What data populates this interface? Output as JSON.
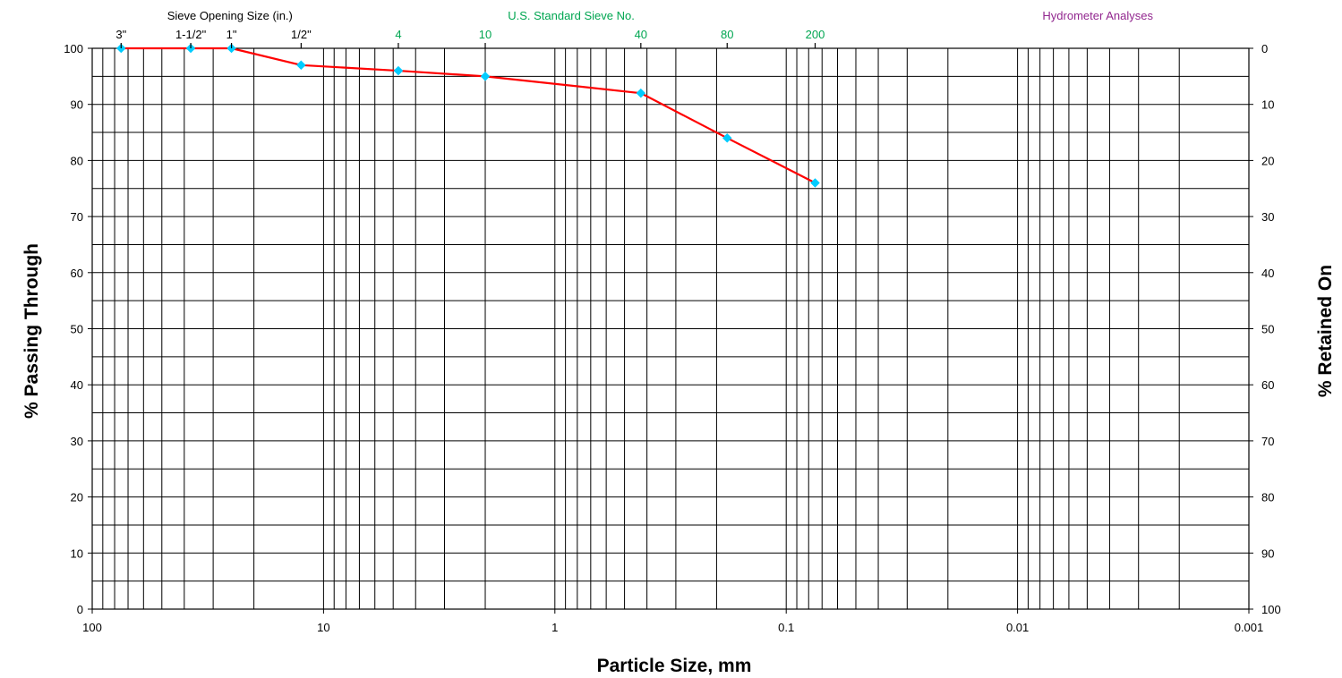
{
  "chart_data": {
    "type": "line",
    "title": "",
    "xlabel": "Particle Size, mm",
    "ylabel": "% Passing Through",
    "y2label": "% Retained On",
    "x_scale": "log",
    "x_reversed": true,
    "xlim": [
      100,
      0.001
    ],
    "ylim": [
      0,
      100
    ],
    "y2lim": [
      100,
      0
    ],
    "grid": true,
    "x_ticks": [
      {
        "value": 100,
        "label": "100"
      },
      {
        "value": 10,
        "label": "10"
      },
      {
        "value": 1,
        "label": "1"
      },
      {
        "value": 0.1,
        "label": "0.1"
      },
      {
        "value": 0.01,
        "label": "0.01"
      },
      {
        "value": 0.001,
        "label": "0.001"
      }
    ],
    "y_ticks": [
      {
        "value": 0,
        "label": "0"
      },
      {
        "value": 10,
        "label": "10"
      },
      {
        "value": 20,
        "label": "20"
      },
      {
        "value": 30,
        "label": "30"
      },
      {
        "value": 40,
        "label": "40"
      },
      {
        "value": 50,
        "label": "50"
      },
      {
        "value": 60,
        "label": "60"
      },
      {
        "value": 70,
        "label": "70"
      },
      {
        "value": 80,
        "label": "80"
      },
      {
        "value": 90,
        "label": "90"
      },
      {
        "value": 100,
        "label": "100"
      }
    ],
    "y2_ticks": [
      {
        "value": 0,
        "label": "0"
      },
      {
        "value": 10,
        "label": "10"
      },
      {
        "value": 20,
        "label": "20"
      },
      {
        "value": 30,
        "label": "30"
      },
      {
        "value": 40,
        "label": "40"
      },
      {
        "value": 50,
        "label": "50"
      },
      {
        "value": 60,
        "label": "60"
      },
      {
        "value": 70,
        "label": "70"
      },
      {
        "value": 80,
        "label": "80"
      },
      {
        "value": 90,
        "label": "90"
      },
      {
        "value": 100,
        "label": "100"
      }
    ],
    "header_groups": [
      {
        "label": "Sieve Opening Size (in.)",
        "color": "#000000",
        "center_x": 25.4
      },
      {
        "label": "U.S. Standard Sieve No.",
        "color": "#00A651",
        "center_x": 0.85
      },
      {
        "label": "Hydrometer Analyses",
        "color": "#92278F",
        "center_x": 0.0045
      }
    ],
    "sieve_labels": [
      {
        "label": "3\"",
        "size_mm": 75,
        "color": "#000000"
      },
      {
        "label": "1-1/2\"",
        "size_mm": 37.5,
        "color": "#000000"
      },
      {
        "label": "1\"",
        "size_mm": 25,
        "color": "#000000"
      },
      {
        "label": "1/2\"",
        "size_mm": 12.5,
        "color": "#000000"
      },
      {
        "label": "4",
        "size_mm": 4.75,
        "color": "#00A651"
      },
      {
        "label": "10",
        "size_mm": 2.0,
        "color": "#00A651"
      },
      {
        "label": "40",
        "size_mm": 0.425,
        "color": "#00A651"
      },
      {
        "label": "80",
        "size_mm": 0.18,
        "color": "#00A651"
      },
      {
        "label": "200",
        "size_mm": 0.075,
        "color": "#00A651"
      }
    ],
    "series": [
      {
        "line_color": "#FF0000",
        "marker_color": "#00CCFF",
        "marker": "diamond",
        "x": [
          75,
          37.5,
          25,
          12.5,
          4.75,
          2.0,
          0.425,
          0.18,
          0.075
        ],
        "y": [
          100,
          100,
          100,
          97,
          96,
          95,
          92,
          84,
          76
        ]
      }
    ]
  }
}
